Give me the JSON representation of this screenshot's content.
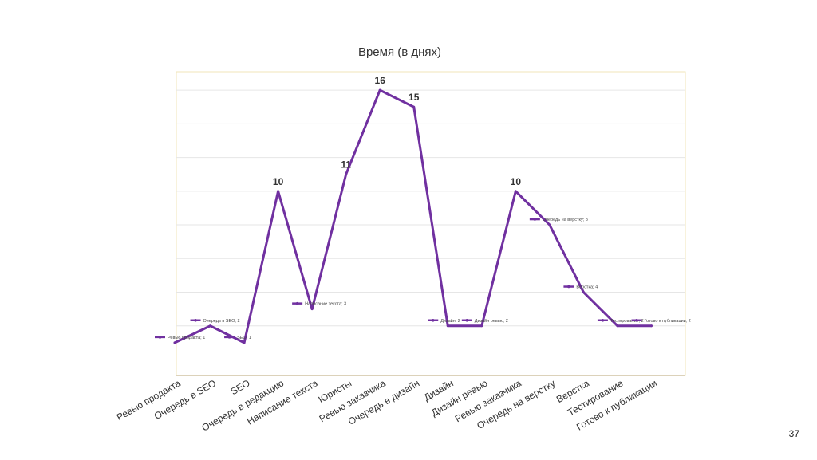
{
  "page_number": "37",
  "chart_data": {
    "type": "line",
    "title": "Время (в днях)",
    "xlabel": "",
    "ylabel": "",
    "ylim": [
      0,
      17
    ],
    "grid": true,
    "line_color": "#7030A0",
    "categories": [
      "Ревью продакта",
      "Очередь в SEO",
      "SEO",
      "Очередь в редакцию",
      "Написание текста",
      "Юристы",
      "Ревью заказчика",
      "Очередь в дизайн",
      "Дизайн",
      "Дизайн ревью",
      "Ревью заказчика",
      "Очередь на верстку",
      "Верстка",
      "Тестирование",
      "Готово к публикации"
    ],
    "values": [
      1,
      2,
      1,
      10,
      3,
      11,
      16,
      15,
      2,
      2,
      10,
      8,
      4,
      2,
      2
    ],
    "data_labels": [
      "Ревью продакта; 1",
      "Очередь в SEO; 2",
      "SEO; 1",
      "10",
      "Написание текста; 3",
      "11",
      "16",
      "15",
      "Дизайн; 2",
      "Дизайн ревью; 2",
      "10",
      "Очередь на верстку; 8",
      "Верстка; 4",
      "Тестирование; 2",
      "Готово к публикации; 2"
    ]
  }
}
